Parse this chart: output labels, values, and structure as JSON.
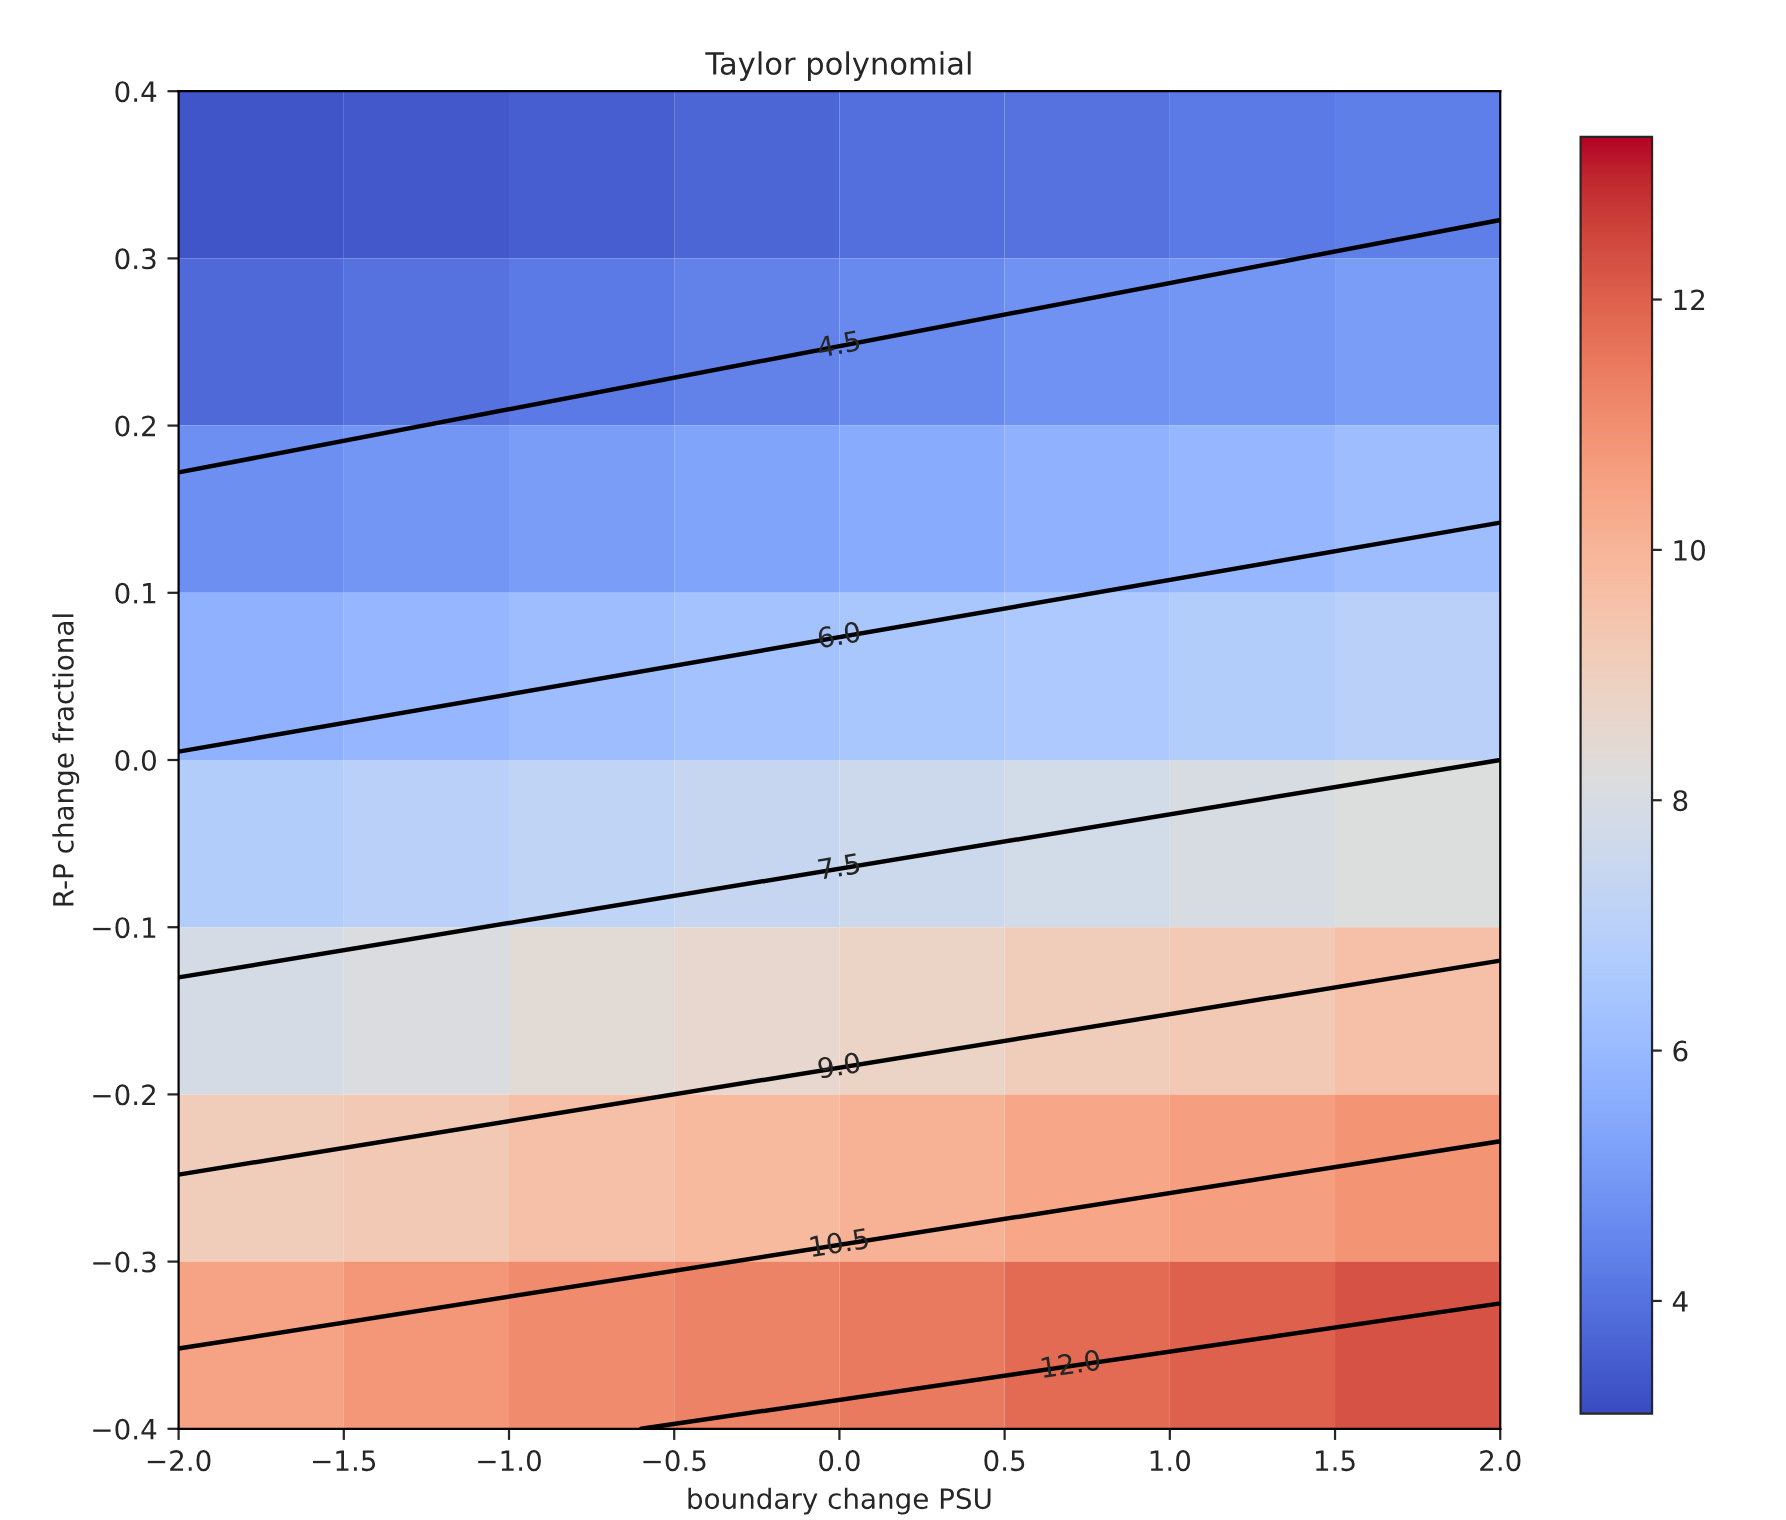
{
  "chart_data": {
    "type": "heatmap",
    "title": "Taylor polynomial",
    "xlabel": "boundary change PSU",
    "ylabel": "R-P change fractional",
    "x": [
      -1.75,
      -1.25,
      -0.75,
      -0.25,
      0.25,
      0.75,
      1.25,
      1.75
    ],
    "y": [
      0.35,
      0.25,
      0.15,
      0.05,
      -0.05,
      -0.15,
      -0.25,
      -0.35
    ],
    "cells": [
      [
        3.3,
        3.4,
        3.5,
        3.7,
        3.9,
        4.0,
        4.2,
        4.3
      ],
      [
        3.8,
        4.0,
        4.2,
        4.4,
        4.6,
        4.8,
        4.9,
        5.1
      ],
      [
        4.7,
        4.9,
        5.1,
        5.3,
        5.5,
        5.7,
        5.9,
        6.1
      ],
      [
        5.7,
        5.9,
        6.1,
        6.3,
        6.5,
        6.6,
        6.8,
        7.0
      ],
      [
        6.8,
        7.0,
        7.2,
        7.4,
        7.6,
        7.8,
        8.0,
        8.2
      ],
      [
        7.9,
        8.1,
        8.4,
        8.6,
        8.8,
        9.1,
        9.3,
        9.6
      ],
      [
        9.1,
        9.3,
        9.6,
        9.8,
        10.1,
        10.4,
        10.6,
        10.9
      ],
      [
        10.5,
        10.8,
        11.1,
        11.3,
        11.5,
        11.8,
        12.0,
        12.3
      ]
    ],
    "xlim": [
      -2.0,
      2.0
    ],
    "ylim": [
      -0.4,
      0.4
    ],
    "xticks": [
      {
        "value": -2.0,
        "label": "−2.0"
      },
      {
        "value": -1.5,
        "label": "−1.5"
      },
      {
        "value": -1.0,
        "label": "−1.0"
      },
      {
        "value": -0.5,
        "label": "−0.5"
      },
      {
        "value": 0.0,
        "label": "0.0"
      },
      {
        "value": 0.5,
        "label": "0.5"
      },
      {
        "value": 1.0,
        "label": "1.0"
      },
      {
        "value": 1.5,
        "label": "1.5"
      },
      {
        "value": 2.0,
        "label": "2.0"
      }
    ],
    "yticks": [
      {
        "value": -0.4,
        "label": "−0.4"
      },
      {
        "value": -0.3,
        "label": "−0.3"
      },
      {
        "value": -0.2,
        "label": "−0.2"
      },
      {
        "value": -0.1,
        "label": "−0.1"
      },
      {
        "value": 0.0,
        "label": "0.0"
      },
      {
        "value": 0.1,
        "label": "0.1"
      },
      {
        "value": 0.2,
        "label": "0.2"
      },
      {
        "value": 0.3,
        "label": "0.3"
      },
      {
        "value": 0.4,
        "label": "0.4"
      }
    ],
    "clim": [
      3.1,
      13.3
    ],
    "cticks": [
      4,
      6,
      8,
      10,
      12
    ],
    "series": [
      {
        "type": "line",
        "name": "4.5",
        "color": "#000000",
        "x": [
          -2.0,
          2.0
        ],
        "values": [
          0.172,
          0.323
        ]
      },
      {
        "type": "line",
        "name": "6.0",
        "color": "#000000",
        "x": [
          -2.0,
          2.0
        ],
        "values": [
          0.005,
          0.142
        ]
      },
      {
        "type": "line",
        "name": "7.5",
        "color": "#000000",
        "x": [
          -2.0,
          2.0
        ],
        "values": [
          -0.13,
          0.0
        ]
      },
      {
        "type": "line",
        "name": "9.0",
        "color": "#000000",
        "x": [
          -2.0,
          2.0
        ],
        "values": [
          -0.248,
          -0.12
        ]
      },
      {
        "type": "line",
        "name": "10.5",
        "color": "#000000",
        "x": [
          -2.0,
          2.0
        ],
        "values": [
          -0.352,
          -0.228
        ]
      },
      {
        "type": "line",
        "name": "12.0",
        "color": "#000000",
        "x": [
          -0.6,
          2.0
        ],
        "values": [
          -0.4,
          -0.325
        ]
      }
    ],
    "grid": false
  }
}
